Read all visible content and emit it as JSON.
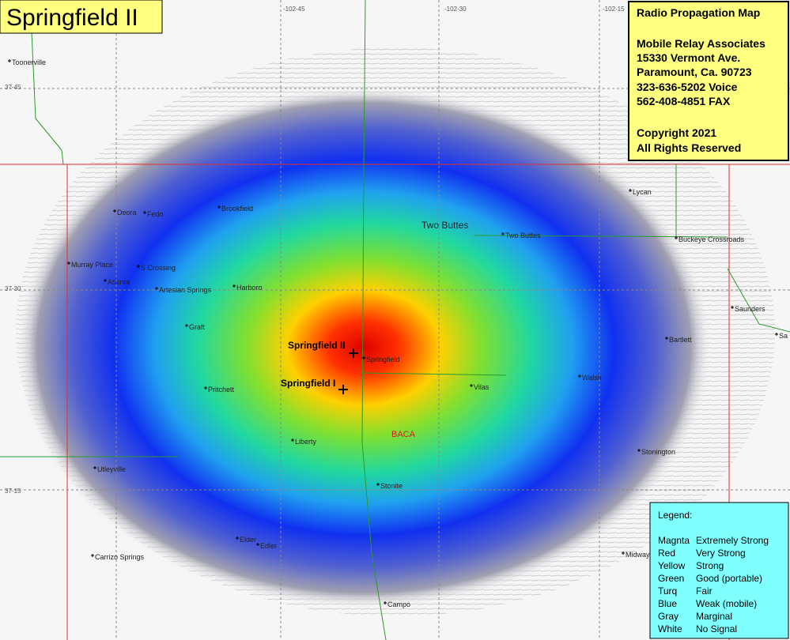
{
  "header": {
    "title": "Springfield II"
  },
  "info": {
    "title": "Radio Propagation Map",
    "lines": [
      "Mobile Relay Associates",
      "15330 Vermont Ave.",
      "Paramount, Ca. 90723",
      "323-636-5202 Voice",
      "562-408-4851 FAX"
    ],
    "copyright": [
      "Copyright 2021",
      "All Rights Reserved"
    ]
  },
  "legend": {
    "title": "Legend:",
    "rows": [
      [
        "Magnta",
        "Extremely Strong"
      ],
      [
        "Red",
        "Very Strong"
      ],
      [
        "Yellow",
        "Strong"
      ],
      [
        "Green",
        "Good (portable)"
      ],
      [
        "Turq",
        "Fair"
      ],
      [
        "Blue",
        "Weak (mobile)"
      ],
      [
        "Gray",
        "Marginal"
      ],
      [
        "White",
        "No Signal"
      ]
    ]
  },
  "grid_labels": [
    "-102-45",
    "-102-30",
    "-102-15",
    "37-45",
    "37-30",
    "37-15"
  ],
  "transmitters": [
    "Springfield II",
    "Springfield I"
  ],
  "places": [
    "Toonerville",
    "Deora",
    "Fedo",
    "Brookfield",
    "Murray Place",
    "S Crossing",
    "Atlanta",
    "Artesian Springs",
    "Harboro",
    "Graft",
    "Lycan",
    "Two Buttes",
    "Two Buttes",
    "Buckeye Crossroads",
    "Saunders",
    "Bartlett",
    "Sa",
    "Springfield",
    "Vilas",
    "Walsh",
    "Pritchett",
    "BACA",
    "Liberty",
    "Stonington",
    "Utleyville",
    "Stonite",
    "Elder",
    "Edler",
    "Carrizo Springs",
    "Midway",
    "Campo"
  ]
}
